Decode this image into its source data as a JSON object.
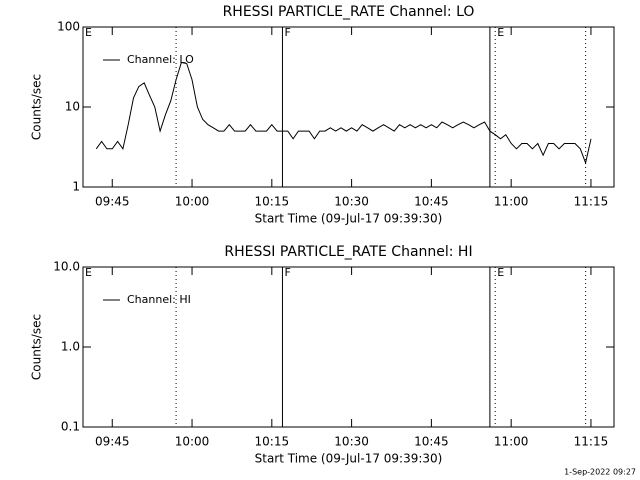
{
  "chart_data": [
    {
      "type": "line",
      "title": "RHESSI PARTICLE_RATE Channel: LO",
      "xlabel": "Start Time (09-Jul-17 09:39:30)",
      "ylabel": "Counts/sec",
      "ylog": true,
      "ylim": [
        1,
        100
      ],
      "yticks": [
        1,
        10,
        100
      ],
      "xlim": [
        "09:39:30",
        "11:19:20"
      ],
      "xticks": [
        "09:45",
        "10:00",
        "10:15",
        "10:30",
        "10:45",
        "11:00",
        "11:15"
      ],
      "x": [
        "09:42",
        "09:43",
        "09:44",
        "09:45",
        "09:46",
        "09:47",
        "09:48",
        "09:49",
        "09:50",
        "09:51",
        "09:52",
        "09:53",
        "09:54",
        "09:55",
        "09:56",
        "09:57",
        "09:58",
        "09:59",
        "10:00",
        "10:01",
        "10:02",
        "10:03",
        "10:04",
        "10:05",
        "10:06",
        "10:07",
        "10:08",
        "10:09",
        "10:10",
        "10:11",
        "10:12",
        "10:13",
        "10:14",
        "10:15",
        "10:16",
        "10:17",
        "10:18",
        "10:19",
        "10:20",
        "10:21",
        "10:22",
        "10:23",
        "10:24",
        "10:25",
        "10:26",
        "10:27",
        "10:28",
        "10:29",
        "10:30",
        "10:31",
        "10:32",
        "10:33",
        "10:34",
        "10:35",
        "10:36",
        "10:37",
        "10:38",
        "10:39",
        "10:40",
        "10:41",
        "10:42",
        "10:43",
        "10:44",
        "10:45",
        "10:46",
        "10:47",
        "10:48",
        "10:49",
        "10:50",
        "10:51",
        "10:52",
        "10:53",
        "10:54",
        "10:55",
        "10:56",
        "10:57",
        "10:58",
        "10:59",
        "11:00",
        "11:01",
        "11:02",
        "11:03",
        "11:04",
        "11:05",
        "11:06",
        "11:07",
        "11:08",
        "11:09",
        "11:10",
        "11:11",
        "11:12",
        "11:13",
        "11:14",
        "11:15"
      ],
      "series": [
        {
          "name": "Channel: LO",
          "color": "#000000",
          "values": [
            3,
            3.7,
            3,
            3,
            3.7,
            3,
            6,
            13,
            18,
            20,
            14,
            10,
            5,
            8,
            12,
            22,
            36,
            35,
            22,
            10,
            7,
            6,
            5.5,
            5,
            5,
            6,
            5,
            5,
            5,
            6,
            5,
            5,
            5,
            6,
            5,
            5,
            5,
            4,
            5,
            5,
            5,
            4,
            5,
            5,
            5.5,
            5,
            5.5,
            5,
            5.5,
            5,
            6,
            5.5,
            5,
            5.5,
            6,
            5.5,
            5,
            6,
            5.5,
            6,
            5.5,
            6,
            5.5,
            6,
            5.5,
            6.5,
            6,
            5.5,
            6,
            6.5,
            6,
            5.5,
            6,
            6.5,
            5,
            4.5,
            4,
            4.5,
            3.5,
            3,
            3.5,
            3.5,
            3,
            3.5,
            2.5,
            3.5,
            3.5,
            3,
            3.5,
            3.5,
            3.5,
            3,
            2,
            4
          ]
        }
      ],
      "event_lines": [
        {
          "x": "09:57",
          "style": "dotted"
        },
        {
          "x": "10:17",
          "style": "solid"
        },
        {
          "x": "10:56",
          "style": "solid"
        },
        {
          "x": "10:57",
          "style": "dotted"
        },
        {
          "x": "11:14",
          "style": "dotted"
        }
      ],
      "event_labels": [
        {
          "x": "09:39:30",
          "text": "E"
        },
        {
          "x": "10:17",
          "text": "F"
        },
        {
          "x": "10:57",
          "text": "E"
        }
      ]
    },
    {
      "type": "line",
      "title": "RHESSI PARTICLE_RATE Channel: HI",
      "xlabel": "Start Time (09-Jul-17 09:39:30)",
      "ylabel": "Counts/sec",
      "ylog": true,
      "ylim": [
        0.1,
        10
      ],
      "yticks": [
        0.1,
        {
          "value": 1,
          "label": "1.0"
        },
        {
          "value": 10,
          "label": "10.0"
        }
      ],
      "xlim": [
        "09:39:30",
        "11:19:20"
      ],
      "xticks": [
        "09:45",
        "10:00",
        "10:15",
        "10:30",
        "10:45",
        "11:00",
        "11:15"
      ],
      "x": [],
      "series": [
        {
          "name": "Channel: HI",
          "color": "#000000",
          "values": []
        }
      ],
      "event_lines": [
        {
          "x": "09:57",
          "style": "dotted"
        },
        {
          "x": "10:17",
          "style": "solid"
        },
        {
          "x": "10:56",
          "style": "solid"
        },
        {
          "x": "10:57",
          "style": "dotted"
        },
        {
          "x": "11:14",
          "style": "dotted"
        }
      ],
      "event_labels": [
        {
          "x": "09:39:30",
          "text": "E"
        },
        {
          "x": "10:17",
          "text": "F"
        },
        {
          "x": "10:57",
          "text": "E"
        }
      ]
    }
  ],
  "footer": "1-Sep-2022 09:27"
}
